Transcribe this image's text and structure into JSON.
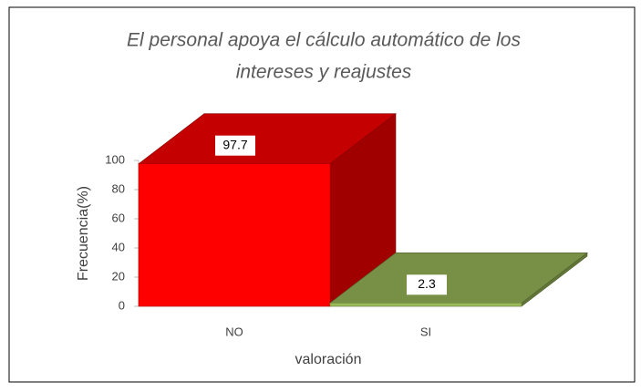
{
  "chart_data": {
    "type": "bar",
    "title": [
      "El personal apoya el cálculo automático de los",
      "intereses y reajustes"
    ],
    "categories": [
      "NO",
      "SI"
    ],
    "values": [
      97.7,
      2.3
    ],
    "colors": [
      "#ff0000",
      "#9bbb59"
    ],
    "x_label": "valoración",
    "y_label": "Frecuencia(%)",
    "ylim": [
      0,
      100
    ],
    "yticks": [
      0,
      20,
      40,
      60,
      80,
      100
    ],
    "grid": false
  }
}
